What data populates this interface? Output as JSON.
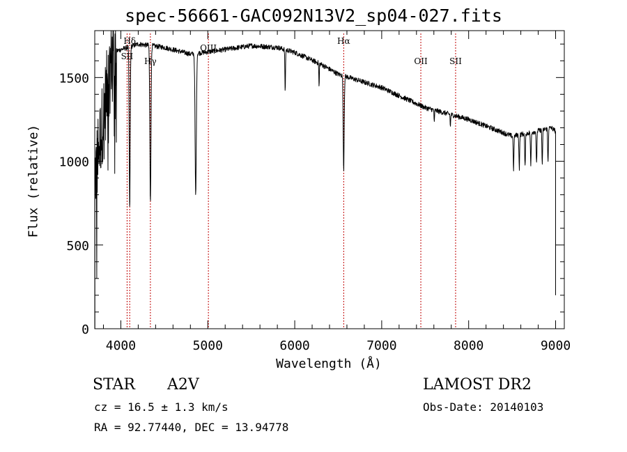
{
  "chart_data": {
    "type": "line",
    "title": "spec-56661-GAC092N13V2_sp04-027.fits",
    "xlabel": "Wavelength (Å)",
    "ylabel": "Flux (relative)",
    "xlim": [
      3700,
      9100
    ],
    "ylim": [
      0,
      1780
    ],
    "x_ticks": [
      4000,
      5000,
      6000,
      7000,
      8000,
      9000
    ],
    "y_ticks": [
      0,
      500,
      1000,
      1500
    ],
    "grid": false,
    "continuum": [
      [
        3700,
        900
      ],
      [
        3900,
        1650
      ],
      [
        4200,
        1700
      ],
      [
        4500,
        1680
      ],
      [
        4800,
        1640
      ],
      [
        5100,
        1660
      ],
      [
        5500,
        1690
      ],
      [
        5800,
        1680
      ],
      [
        6000,
        1650
      ],
      [
        6300,
        1580
      ],
      [
        6500,
        1520
      ],
      [
        7000,
        1440
      ],
      [
        7500,
        1320
      ],
      [
        8000,
        1250
      ],
      [
        8500,
        1150
      ],
      [
        8700,
        1170
      ],
      [
        8950,
        1200
      ],
      [
        9000,
        1180
      ]
    ],
    "absorption_lines": [
      {
        "x": 4102,
        "depth": 980,
        "width": 8
      },
      {
        "x": 4340,
        "depth": 930,
        "width": 9
      },
      {
        "x": 4861,
        "depth": 850,
        "width": 10
      },
      {
        "x": 5890,
        "depth": 250,
        "width": 5
      },
      {
        "x": 6280,
        "depth": 150,
        "width": 4
      },
      {
        "x": 6563,
        "depth": 560,
        "width": 8
      },
      {
        "x": 7605,
        "depth": 80,
        "width": 4
      },
      {
        "x": 7790,
        "depth": 80,
        "width": 4
      }
    ],
    "line_markers": [
      {
        "x": 4072,
        "label": "SII",
        "y": 1610
      },
      {
        "x": 4102,
        "label": "Hδ",
        "y": 1700
      },
      {
        "x": 4340,
        "label": "Hγ",
        "y": 1580
      },
      {
        "x": 5007,
        "label": "OIII",
        "y": 1660
      },
      {
        "x": 6563,
        "label": "Hα",
        "y": 1700
      },
      {
        "x": 7450,
        "label": "OII",
        "y": 1580
      },
      {
        "x": 7850,
        "label": "SII",
        "y": 1580
      }
    ]
  },
  "info": {
    "class": "STAR",
    "subclass": "A2V",
    "cz": "cz = 16.5 ± 1.3 km/s",
    "radec": "RA =  92.77440, DEC =  13.94778",
    "survey": "LAMOST DR2",
    "obsdate": "Obs-Date: 20140103"
  }
}
